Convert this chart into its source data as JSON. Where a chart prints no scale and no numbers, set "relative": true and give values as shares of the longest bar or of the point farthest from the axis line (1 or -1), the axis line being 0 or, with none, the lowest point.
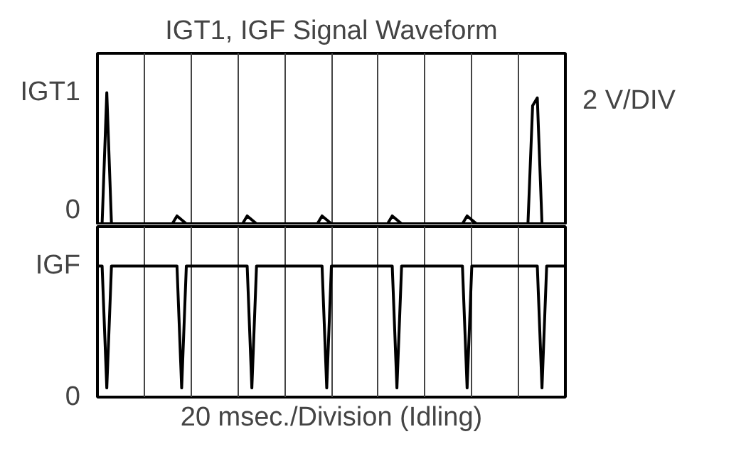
{
  "chart_data": [
    {
      "type": "line",
      "title": "IGT1, IGF Signal Waveform",
      "ylabel": "IGT1",
      "relative": true,
      "grid": "x",
      "categories": [
        null,
        null,
        null,
        null,
        null,
        null,
        null,
        null,
        null,
        null,
        null,
        null,
        null,
        null,
        null,
        null,
        null,
        null,
        null,
        null,
        null,
        null,
        null,
        null,
        null,
        null,
        null,
        null,
        null,
        null,
        null,
        null,
        null,
        null,
        null,
        null,
        null,
        null,
        null,
        null,
        null,
        null,
        null,
        null,
        null,
        null,
        null,
        null,
        null,
        null,
        null,
        null,
        null,
        null,
        null,
        null,
        null,
        null,
        null,
        null,
        null,
        null,
        null,
        null,
        null,
        null,
        null,
        null,
        null,
        null,
        null,
        null,
        null,
        null,
        null,
        null,
        null,
        null,
        null,
        null,
        null,
        null,
        null,
        null,
        null,
        null,
        null,
        null,
        null,
        null,
        null,
        null,
        null,
        null,
        null,
        null,
        null,
        null,
        null,
        null,
        null
      ],
      "series": [
        {
          "color": "#000000",
          "values": [
            0,
            0,
            1,
            0,
            0,
            0,
            0,
            0,
            0,
            0,
            0,
            0,
            0,
            0,
            0,
            0,
            0,
            0.06,
            0.03,
            0,
            0,
            0,
            0,
            0,
            0,
            0,
            0,
            0,
            0,
            0,
            0,
            0,
            0.06,
            0.03,
            0,
            0,
            0,
            0,
            0,
            0,
            0,
            0,
            0,
            0,
            0,
            0,
            0,
            0,
            0.06,
            0.03,
            0,
            0,
            0,
            0,
            0,
            0,
            0,
            0,
            0,
            0,
            0,
            0,
            0,
            0.06,
            0.03,
            0,
            0,
            0,
            0,
            0,
            0,
            0,
            0,
            0,
            0,
            0,
            0,
            0,
            0,
            0.06,
            0.03,
            0,
            0,
            0,
            0,
            0,
            0,
            0,
            0,
            0,
            0,
            0,
            0,
            0.9,
            0.96,
            0,
            0,
            0,
            0,
            0,
            0
          ]
        }
      ],
      "annotations": [
        "0",
        "2 V/DIV"
      ]
    },
    {
      "type": "line",
      "ylabel": "IGF",
      "xlabel": "20 msec./Division (Idling)",
      "relative": true,
      "grid": "x",
      "categories": [
        null,
        null,
        null,
        null,
        null,
        null,
        null,
        null,
        null,
        null,
        null,
        null,
        null,
        null,
        null,
        null,
        null,
        null,
        null,
        null,
        null,
        null,
        null,
        null,
        null,
        null,
        null,
        null,
        null,
        null,
        null,
        null,
        null,
        null,
        null,
        null,
        null,
        null,
        null,
        null,
        null,
        null,
        null,
        null,
        null,
        null,
        null,
        null,
        null,
        null,
        null,
        null,
        null,
        null,
        null,
        null,
        null,
        null,
        null,
        null,
        null,
        null,
        null,
        null,
        null,
        null,
        null,
        null,
        null,
        null,
        null,
        null,
        null,
        null,
        null,
        null,
        null,
        null,
        null,
        null,
        null,
        null,
        null,
        null,
        null,
        null,
        null,
        null,
        null,
        null,
        null,
        null,
        null,
        null,
        null,
        null,
        null,
        null,
        null,
        null,
        null
      ],
      "series": [
        {
          "color": "#000000",
          "values": [
            1,
            1,
            0.07,
            1,
            1,
            1,
            1,
            1,
            1,
            1,
            1,
            1,
            1,
            1,
            1,
            1,
            1,
            1,
            0.07,
            1,
            1,
            1,
            1,
            1,
            1,
            1,
            1,
            1,
            1,
            1,
            1,
            1,
            1,
            0.07,
            1,
            1,
            1,
            1,
            1,
            1,
            1,
            1,
            1,
            1,
            1,
            1,
            1,
            1,
            1,
            0.07,
            1,
            1,
            1,
            1,
            1,
            1,
            1,
            1,
            1,
            1,
            1,
            1,
            1,
            1,
            0.07,
            1,
            1,
            1,
            1,
            1,
            1,
            1,
            1,
            1,
            1,
            1,
            1,
            1,
            1,
            0.07,
            1,
            1,
            1,
            1,
            1,
            1,
            1,
            1,
            1,
            1,
            1,
            1,
            1,
            1,
            1,
            0.07,
            1,
            1,
            1,
            1,
            1
          ]
        }
      ],
      "annotations": [
        "0"
      ]
    }
  ]
}
